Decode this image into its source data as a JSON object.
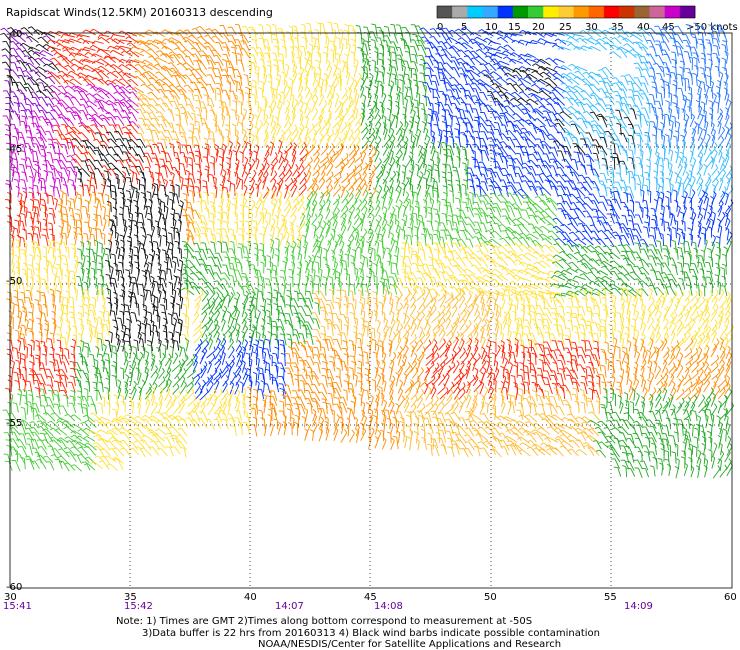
{
  "title": "Rapidscat Winds(12.5KM) 20160313 descending",
  "colorbar": {
    "labels": [
      "0",
      "5",
      "10",
      "15",
      "20",
      "25",
      "30",
      "35",
      "40",
      "45",
      ">50 knots"
    ],
    "colors": [
      "#555555",
      "#aaaaaa",
      "#00ccff",
      "#33aaff",
      "#0033ff",
      "#009900",
      "#33cc33",
      "#ffee00",
      "#ffcc33",
      "#ff9900",
      "#ff6600",
      "#ff0000",
      "#cc3300",
      "#996633",
      "#cc6699",
      "#cc00cc",
      "#660099"
    ]
  },
  "map": {
    "lon_ticks": [
      "30",
      "35",
      "40",
      "45",
      "50",
      "55",
      "60"
    ],
    "lat_ticks": [
      "-40",
      "-45",
      "-50",
      "-55",
      "-60"
    ],
    "time_labels": [
      "15:41",
      "15:42",
      "14:07",
      "14:08",
      "14:09"
    ],
    "time_colors": [
      "#660099"
    ]
  },
  "notes": {
    "line1": "Note: 1) Times are GMT 2)Times along bottom correspond to measurement at -50S",
    "line2": "3)Data buffer is 22 hrs from 20160313 4) Black wind barbs indicate possible contamination",
    "line3": "NOAA/NESDIS/Center for Satellite Applications and Research"
  }
}
